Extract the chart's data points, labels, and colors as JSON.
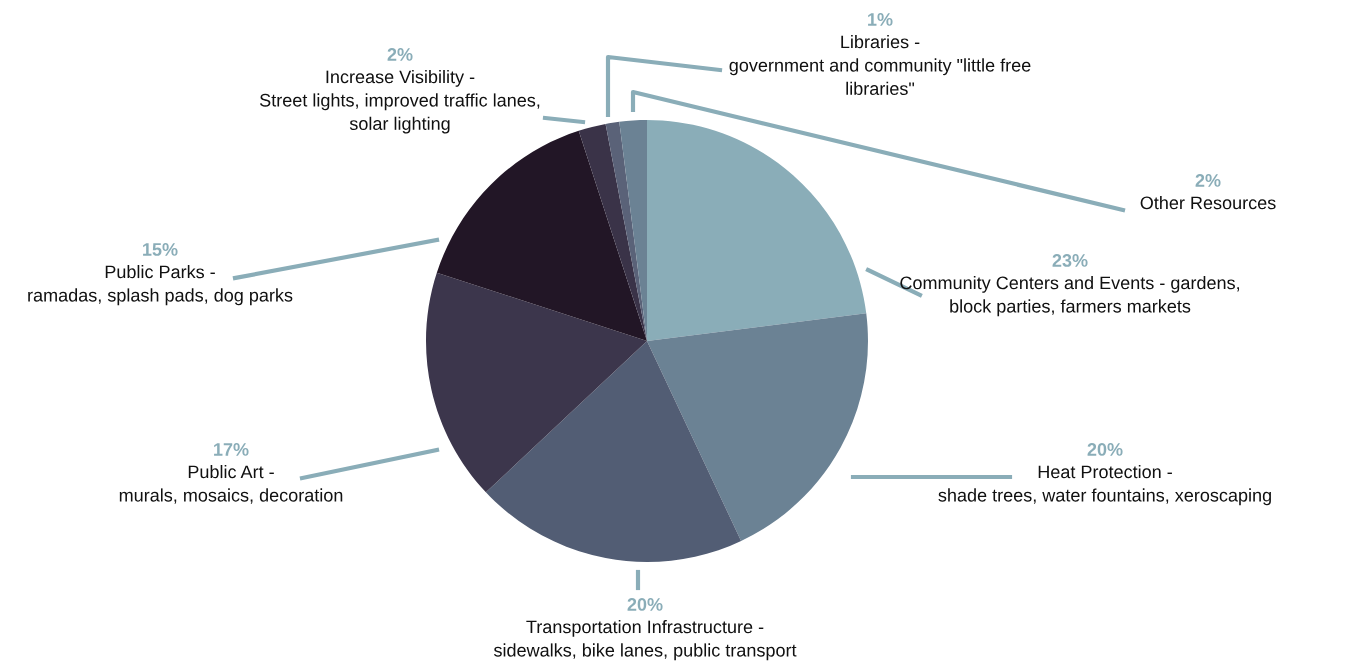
{
  "chart_data": {
    "type": "pie",
    "categories": [
      "Community Centers and Events - gardens,\nblock parties, farmers markets",
      "Heat Protection -\nshade trees, water fountains, xeroscaping",
      "Transportation Infrastructure -\nsidewalks, bike lanes, public transport",
      "Public Art -\nmurals, mosaics, decoration",
      "Public Parks -\nramadas, splash pads, dog parks",
      "Increase Visibility -\nStreet lights, improved traffic lanes,\nsolar lighting",
      "Libraries -\ngovernment and community \"little free\nlibraries\"",
      "Other Resources"
    ],
    "values": [
      23,
      20,
      20,
      17,
      15,
      2,
      1,
      2
    ],
    "value_labels": [
      "23%",
      "20%",
      "20%",
      "17%",
      "15%",
      "2%",
      "1%",
      "2%"
    ],
    "colors": [
      "#8aadb8",
      "#6b8294",
      "#525d74",
      "#3c364c",
      "#221626",
      "#3a3348",
      "#5a6278",
      "#6b8294"
    ],
    "legend": false
  }
}
